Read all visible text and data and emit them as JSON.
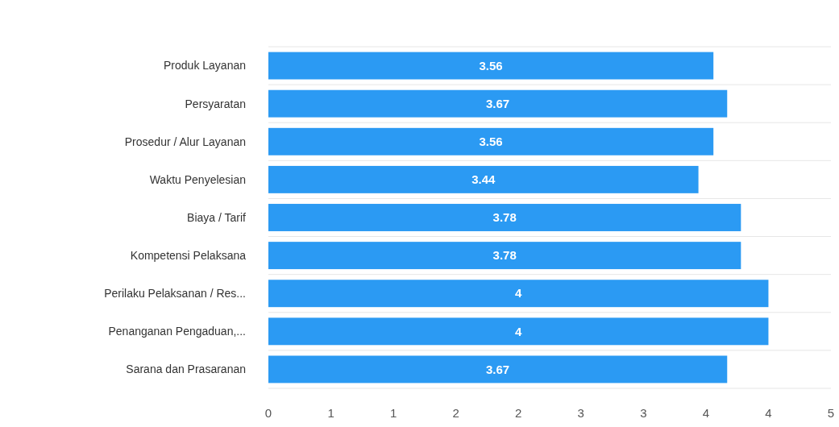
{
  "chart_data": {
    "type": "bar",
    "orientation": "horizontal",
    "categories": [
      "Produk Layanan",
      "Persyaratan",
      "Prosedur / Alur Layanan",
      "Waktu Penyelesian",
      "Biaya / Tarif",
      "Kompetensi Pelaksana",
      "Perilaku Pelaksanan / Res...",
      "Penanganan Pengaduan,...",
      "Sarana dan Prasaranan"
    ],
    "values": [
      3.56,
      3.67,
      3.56,
      3.44,
      3.78,
      3.78,
      4,
      4,
      3.67
    ],
    "color": "#2b9af3",
    "xlim": [
      0,
      4.5
    ],
    "xticks": [
      0,
      {
        "value": 0.5,
        "label": "1"
      },
      1,
      {
        "value": 1.5,
        "label": "2"
      },
      2,
      {
        "value": 2.5,
        "label": "3"
      },
      3,
      {
        "value": 3.5,
        "label": "4"
      },
      4,
      {
        "value": 4.5,
        "label": "5"
      }
    ],
    "grid": "y",
    "data_labels": true
  }
}
